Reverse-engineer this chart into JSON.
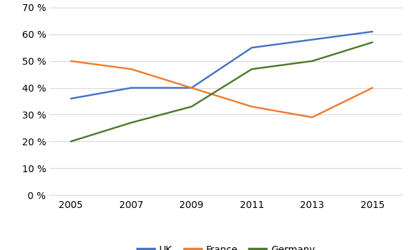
{
  "years": [
    2005,
    2007,
    2009,
    2011,
    2013,
    2015
  ],
  "UK": [
    0.36,
    0.4,
    0.4,
    0.55,
    0.58,
    0.61
  ],
  "France": [
    0.5,
    0.47,
    0.4,
    0.33,
    0.29,
    0.4
  ],
  "Germany": [
    0.2,
    0.27,
    0.33,
    0.47,
    0.5,
    0.57
  ],
  "UK_color": "#4472C4",
  "France_color": "#ED7D31",
  "Germany_color": "#4D7A2A",
  "background_color": "#FFFFFF",
  "grid_color": "#D9D9D9",
  "ylim": [
    0.0,
    0.7
  ],
  "yticks": [
    0.0,
    0.1,
    0.2,
    0.3,
    0.4,
    0.5,
    0.6,
    0.7
  ],
  "linewidth": 1.8,
  "legend_labels": [
    "UK",
    "France",
    "Germany"
  ],
  "tick_fontsize": 10,
  "legend_fontsize": 10
}
